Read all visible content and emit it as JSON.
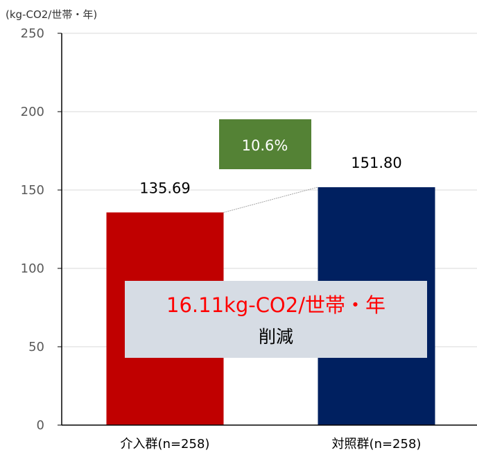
{
  "chart_data": {
    "type": "bar",
    "unit_label": "(kg-CO2/世帯・年)",
    "categories": [
      "介入群(n=258)",
      "対照群(n=258)"
    ],
    "values": [
      135.69,
      151.8
    ],
    "value_labels": [
      "135.69",
      "151.80"
    ],
    "bar_colors": [
      "#c00000",
      "#002060"
    ],
    "ylim": [
      0,
      250
    ],
    "yticks": [
      0,
      50,
      100,
      150,
      200,
      250
    ],
    "ytick_labels": [
      "0",
      "50",
      "100",
      "150",
      "200",
      "250"
    ],
    "grid": true,
    "legend": "none",
    "annotations": {
      "percent_badge": {
        "text": "10.6%",
        "color": "#548235"
      },
      "reduction_box": {
        "line1": "16.11kg-CO2/世帯・年",
        "line2": "削減",
        "line1_color": "#ff0000",
        "background": "#d6dce4"
      }
    }
  }
}
